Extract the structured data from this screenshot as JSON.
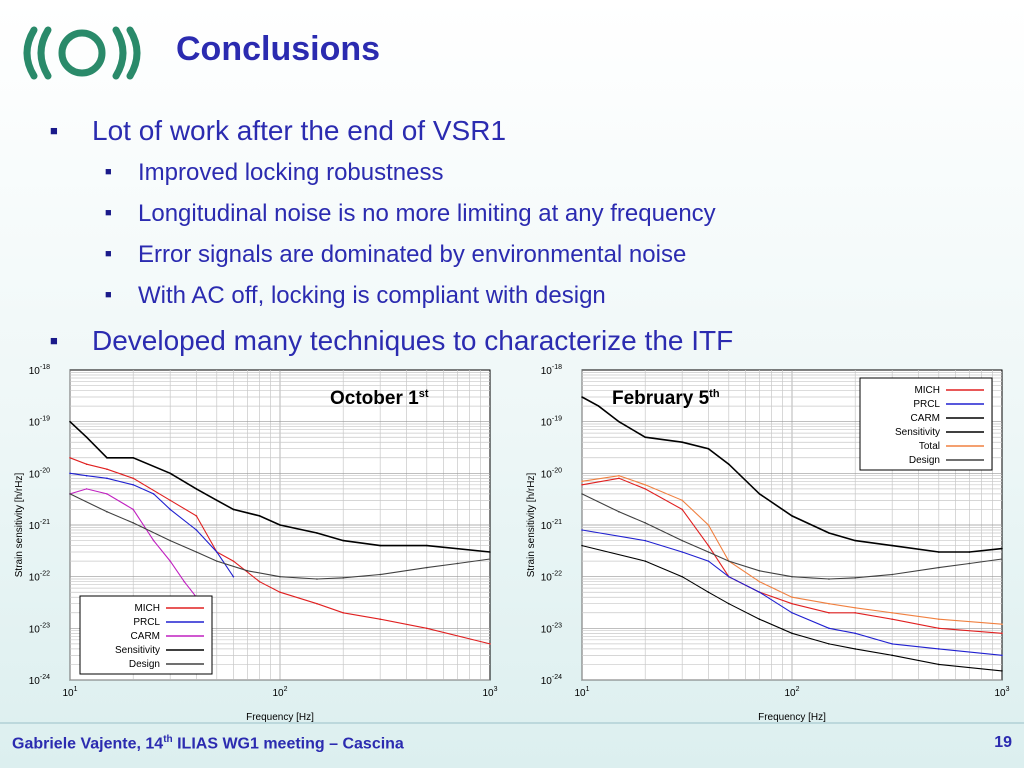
{
  "slide": {
    "title": "Conclusions",
    "bullets": [
      {
        "text": "Lot of work after the end of VSR1",
        "level": 1
      },
      {
        "text": "Improved locking robustness",
        "level": 2
      },
      {
        "text": "Longitudinal noise is no more limiting at any frequency",
        "level": 2
      },
      {
        "text": "Error signals are dominated by environmental noise",
        "level": 2
      },
      {
        "text": "With AC off, locking is compliant with design",
        "level": 2
      },
      {
        "text": "Developed many techniques to characterize the ITF",
        "level": 1
      }
    ],
    "footer": {
      "author": "Gabriele Vajente, 14",
      "author_sup": "th",
      "event": " ILIAS WG1 meeting – Cascina",
      "page": "19"
    },
    "colors": {
      "title": "#2b2bb0",
      "logo": "#2a8a6a"
    }
  },
  "chart_data": [
    {
      "type": "line",
      "annotation": {
        "main": "October 1",
        "sup": "st"
      },
      "xlabel": "Frequency [Hz]",
      "ylabel": "Strain sensitivity [h/rHz]",
      "xscale": "log",
      "yscale": "log",
      "xlim": [
        10,
        1000
      ],
      "ylim": [
        1e-24,
        1e-18
      ],
      "xticks": [
        {
          "base": "10",
          "exp": "1"
        },
        {
          "base": "10",
          "exp": "2"
        },
        {
          "base": "10",
          "exp": "3"
        }
      ],
      "yticks": [
        {
          "base": "10",
          "exp": "-24"
        },
        {
          "base": "10",
          "exp": "-23"
        },
        {
          "base": "10",
          "exp": "-22"
        },
        {
          "base": "10",
          "exp": "-21"
        },
        {
          "base": "10",
          "exp": "-20"
        },
        {
          "base": "10",
          "exp": "-19"
        },
        {
          "base": "10",
          "exp": "-18"
        }
      ],
      "grid": true,
      "legend_position": "bottom-left",
      "series": [
        {
          "name": "MICH",
          "color": "#e02020",
          "x": [
            10,
            12,
            15,
            20,
            30,
            40,
            50,
            60,
            80,
            100,
            150,
            200,
            300,
            500,
            1000
          ],
          "y": [
            2e-20,
            1.5e-20,
            1.2e-20,
            8e-21,
            3e-21,
            1.5e-21,
            3e-22,
            2e-22,
            8e-23,
            5e-23,
            3e-23,
            2e-23,
            1.5e-23,
            1e-23,
            5e-24
          ]
        },
        {
          "name": "PRCL",
          "color": "#2020d0",
          "x": [
            10,
            12,
            15,
            20,
            25,
            30,
            40,
            50,
            60
          ],
          "y": [
            1e-20,
            9e-21,
            8e-21,
            6e-21,
            4e-21,
            2e-21,
            8e-22,
            3e-22,
            1e-22
          ]
        },
        {
          "name": "CARM",
          "color": "#c020c0",
          "x": [
            10,
            12,
            15,
            20,
            25,
            30,
            35,
            40
          ],
          "y": [
            4e-21,
            5e-21,
            4e-21,
            2e-21,
            5e-22,
            2e-22,
            8e-23,
            4e-23
          ]
        },
        {
          "name": "Sensitivity",
          "color": "#000000",
          "x": [
            10,
            12,
            15,
            20,
            30,
            40,
            50,
            60,
            80,
            100,
            150,
            200,
            300,
            500,
            1000
          ],
          "y": [
            1e-19,
            5e-20,
            2e-20,
            2e-20,
            1e-20,
            5e-21,
            3e-21,
            2e-21,
            1.5e-21,
            1e-21,
            7e-22,
            5e-22,
            4e-22,
            4e-22,
            3e-22
          ]
        },
        {
          "name": "Design",
          "color": "#404040",
          "x": [
            10,
            15,
            20,
            30,
            40,
            50,
            70,
            100,
            150,
            200,
            300,
            500,
            700,
            1000
          ],
          "y": [
            4e-21,
            1.8e-21,
            1.1e-21,
            5e-22,
            3e-22,
            2e-22,
            1.3e-22,
            1e-22,
            9e-23,
            9.5e-23,
            1.1e-22,
            1.5e-22,
            1.8e-22,
            2.2e-22
          ]
        }
      ]
    },
    {
      "type": "line",
      "annotation": {
        "main": "February 5",
        "sup": "th"
      },
      "xlabel": "Frequency [Hz]",
      "ylabel": "Strain sensitivity [h/rHz]",
      "xscale": "log",
      "yscale": "log",
      "xlim": [
        10,
        1000
      ],
      "ylim": [
        1e-24,
        1e-18
      ],
      "xticks": [
        {
          "base": "10",
          "exp": "1"
        },
        {
          "base": "10",
          "exp": "2"
        },
        {
          "base": "10",
          "exp": "3"
        }
      ],
      "yticks": [
        {
          "base": "10",
          "exp": "-24"
        },
        {
          "base": "10",
          "exp": "-23"
        },
        {
          "base": "10",
          "exp": "-22"
        },
        {
          "base": "10",
          "exp": "-21"
        },
        {
          "base": "10",
          "exp": "-20"
        },
        {
          "base": "10",
          "exp": "-19"
        },
        {
          "base": "10",
          "exp": "-18"
        }
      ],
      "grid": true,
      "legend_position": "top-right",
      "series": [
        {
          "name": "MICH",
          "color": "#e02020",
          "x": [
            10,
            15,
            20,
            30,
            40,
            50,
            70,
            100,
            150,
            200,
            300,
            500,
            1000
          ],
          "y": [
            6e-21,
            8e-21,
            5e-21,
            2e-21,
            4e-22,
            1e-22,
            5e-23,
            3e-23,
            2e-23,
            2e-23,
            1.5e-23,
            1e-23,
            8e-24
          ]
        },
        {
          "name": "PRCL",
          "color": "#2020d0",
          "x": [
            10,
            20,
            30,
            40,
            50,
            70,
            100,
            150,
            200,
            300,
            500,
            1000
          ],
          "y": [
            8e-22,
            5e-22,
            3e-22,
            2e-22,
            1e-22,
            5e-23,
            2e-23,
            1e-23,
            8e-24,
            5e-24,
            4e-24,
            3e-24
          ]
        },
        {
          "name": "CARM",
          "color": "#000000",
          "x": [
            10,
            20,
            30,
            40,
            50,
            70,
            100,
            150,
            200,
            300,
            500,
            1000
          ],
          "y": [
            4e-22,
            2e-22,
            1e-22,
            5e-23,
            3e-23,
            1.5e-23,
            8e-24,
            5e-24,
            4e-24,
            3e-24,
            2e-24,
            1.5e-24
          ]
        },
        {
          "name": "Sensitivity",
          "color": "#000000",
          "x": [
            10,
            12,
            15,
            20,
            30,
            40,
            50,
            70,
            100,
            150,
            200,
            300,
            500,
            700,
            1000
          ],
          "y": [
            3e-19,
            2e-19,
            1e-19,
            5e-20,
            4e-20,
            3e-20,
            1.5e-20,
            4e-21,
            1.5e-21,
            7e-22,
            5e-22,
            4e-22,
            3e-22,
            3e-22,
            3.5e-22
          ]
        },
        {
          "name": "Total",
          "color": "#f08040",
          "x": [
            10,
            15,
            20,
            30,
            40,
            50,
            70,
            100,
            150,
            200,
            300,
            500,
            1000
          ],
          "y": [
            7e-21,
            9e-21,
            6e-21,
            3e-21,
            1e-21,
            2e-22,
            8e-23,
            4e-23,
            3e-23,
            2.5e-23,
            2e-23,
            1.5e-23,
            1.2e-23
          ]
        },
        {
          "name": "Design",
          "color": "#404040",
          "x": [
            10,
            15,
            20,
            30,
            40,
            50,
            70,
            100,
            150,
            200,
            300,
            500,
            700,
            1000
          ],
          "y": [
            4e-21,
            1.8e-21,
            1.1e-21,
            5e-22,
            3e-22,
            2e-22,
            1.3e-22,
            1e-22,
            9e-23,
            9.5e-23,
            1.1e-22,
            1.5e-22,
            1.8e-22,
            2.2e-22
          ]
        }
      ]
    }
  ]
}
